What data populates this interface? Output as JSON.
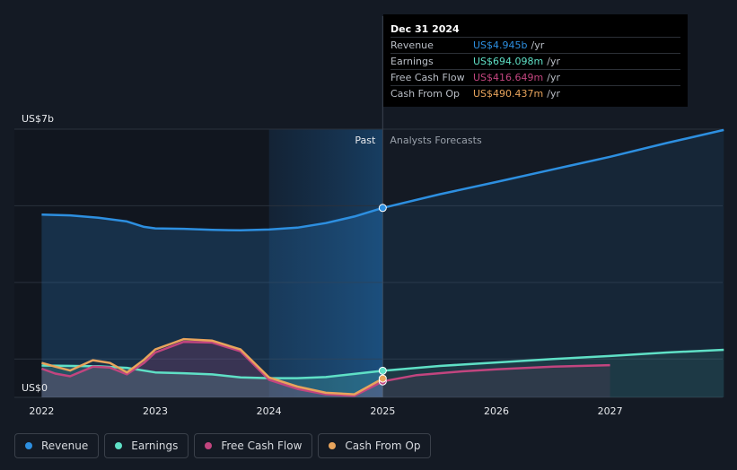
{
  "chart_data": {
    "type": "line",
    "x_unit": "year",
    "x_ticks": [
      "2022",
      "2023",
      "2024",
      "2025",
      "2026",
      "2027"
    ],
    "y_labels": {
      "top": "US$7b",
      "bottom": "US$0"
    },
    "ylim": [
      0,
      7
    ],
    "divider_labels": {
      "past": "Past",
      "forecast": "Analysts Forecasts"
    },
    "divider_x": 2025.0,
    "highlight_start": 2024.0,
    "series": [
      {
        "name": "Revenue",
        "color": "#2d8fe0",
        "area": true,
        "points": [
          [
            2022.0,
            4.77
          ],
          [
            2022.25,
            4.75
          ],
          [
            2022.5,
            4.69
          ],
          [
            2022.75,
            4.59
          ],
          [
            2022.9,
            4.45
          ],
          [
            2023.0,
            4.41
          ],
          [
            2023.25,
            4.4
          ],
          [
            2023.5,
            4.37
          ],
          [
            2023.75,
            4.36
          ],
          [
            2024.0,
            4.38
          ],
          [
            2024.25,
            4.43
          ],
          [
            2024.5,
            4.55
          ],
          [
            2024.75,
            4.72
          ],
          [
            2025.0,
            4.945
          ]
        ],
        "forecast": [
          [
            2025.0,
            4.945
          ],
          [
            2025.5,
            5.3
          ],
          [
            2026.0,
            5.62
          ],
          [
            2026.5,
            5.95
          ],
          [
            2027.0,
            6.28
          ],
          [
            2027.5,
            6.64
          ],
          [
            2028.0,
            6.98
          ]
        ]
      },
      {
        "name": "Earnings",
        "color": "#5fe0c6",
        "area": true,
        "points": [
          [
            2022.0,
            0.83
          ],
          [
            2022.5,
            0.81
          ],
          [
            2022.75,
            0.77
          ],
          [
            2023.0,
            0.65
          ],
          [
            2023.25,
            0.63
          ],
          [
            2023.5,
            0.6
          ],
          [
            2023.75,
            0.52
          ],
          [
            2024.0,
            0.5
          ],
          [
            2024.25,
            0.5
          ],
          [
            2024.5,
            0.53
          ],
          [
            2024.75,
            0.61
          ],
          [
            2025.0,
            0.694
          ]
        ],
        "forecast": [
          [
            2025.0,
            0.694
          ],
          [
            2025.5,
            0.82
          ],
          [
            2026.0,
            0.91
          ],
          [
            2026.5,
            1.0
          ],
          [
            2027.0,
            1.08
          ],
          [
            2027.5,
            1.17
          ],
          [
            2028.0,
            1.24
          ]
        ]
      },
      {
        "name": "Free Cash Flow",
        "color": "#c2457f",
        "area": true,
        "points": [
          [
            2022.0,
            0.75
          ],
          [
            2022.12,
            0.62
          ],
          [
            2022.25,
            0.55
          ],
          [
            2022.45,
            0.8
          ],
          [
            2022.6,
            0.78
          ],
          [
            2022.75,
            0.6
          ],
          [
            2022.9,
            0.9
          ],
          [
            2023.0,
            1.17
          ],
          [
            2023.25,
            1.45
          ],
          [
            2023.5,
            1.43
          ],
          [
            2023.75,
            1.2
          ],
          [
            2024.0,
            0.46
          ],
          [
            2024.25,
            0.22
          ],
          [
            2024.5,
            0.08
          ],
          [
            2024.75,
            0.04
          ],
          [
            2025.0,
            0.417
          ]
        ],
        "forecast": [
          [
            2025.0,
            0.417
          ],
          [
            2025.3,
            0.58
          ],
          [
            2025.7,
            0.68
          ],
          [
            2026.0,
            0.73
          ],
          [
            2026.5,
            0.8
          ],
          [
            2027.0,
            0.84
          ]
        ]
      },
      {
        "name": "Cash From Op",
        "color": "#e8a45c",
        "area": false,
        "points": [
          [
            2022.0,
            0.9
          ],
          [
            2022.12,
            0.8
          ],
          [
            2022.25,
            0.7
          ],
          [
            2022.45,
            0.97
          ],
          [
            2022.6,
            0.9
          ],
          [
            2022.75,
            0.65
          ],
          [
            2022.9,
            0.98
          ],
          [
            2023.0,
            1.25
          ],
          [
            2023.25,
            1.52
          ],
          [
            2023.5,
            1.48
          ],
          [
            2023.75,
            1.25
          ],
          [
            2024.0,
            0.52
          ],
          [
            2024.25,
            0.28
          ],
          [
            2024.5,
            0.12
          ],
          [
            2024.75,
            0.08
          ],
          [
            2025.0,
            0.49
          ]
        ]
      }
    ]
  },
  "tooltip": {
    "date": "Dec 31 2024",
    "rows": [
      {
        "label": "Revenue",
        "value": "US$4.945b",
        "unit": "/yr",
        "color": "#2d8fe0"
      },
      {
        "label": "Earnings",
        "value": "US$694.098m",
        "unit": "/yr",
        "color": "#5fe0c6"
      },
      {
        "label": "Free Cash Flow",
        "value": "US$416.649m",
        "unit": "/yr",
        "color": "#c2457f"
      },
      {
        "label": "Cash From Op",
        "value": "US$490.437m",
        "unit": "/yr",
        "color": "#e8a45c"
      }
    ]
  },
  "legend": [
    {
      "label": "Revenue",
      "color": "#2d8fe0"
    },
    {
      "label": "Earnings",
      "color": "#5fe0c6"
    },
    {
      "label": "Free Cash Flow",
      "color": "#c2457f"
    },
    {
      "label": "Cash From Op",
      "color": "#e8a45c"
    }
  ]
}
